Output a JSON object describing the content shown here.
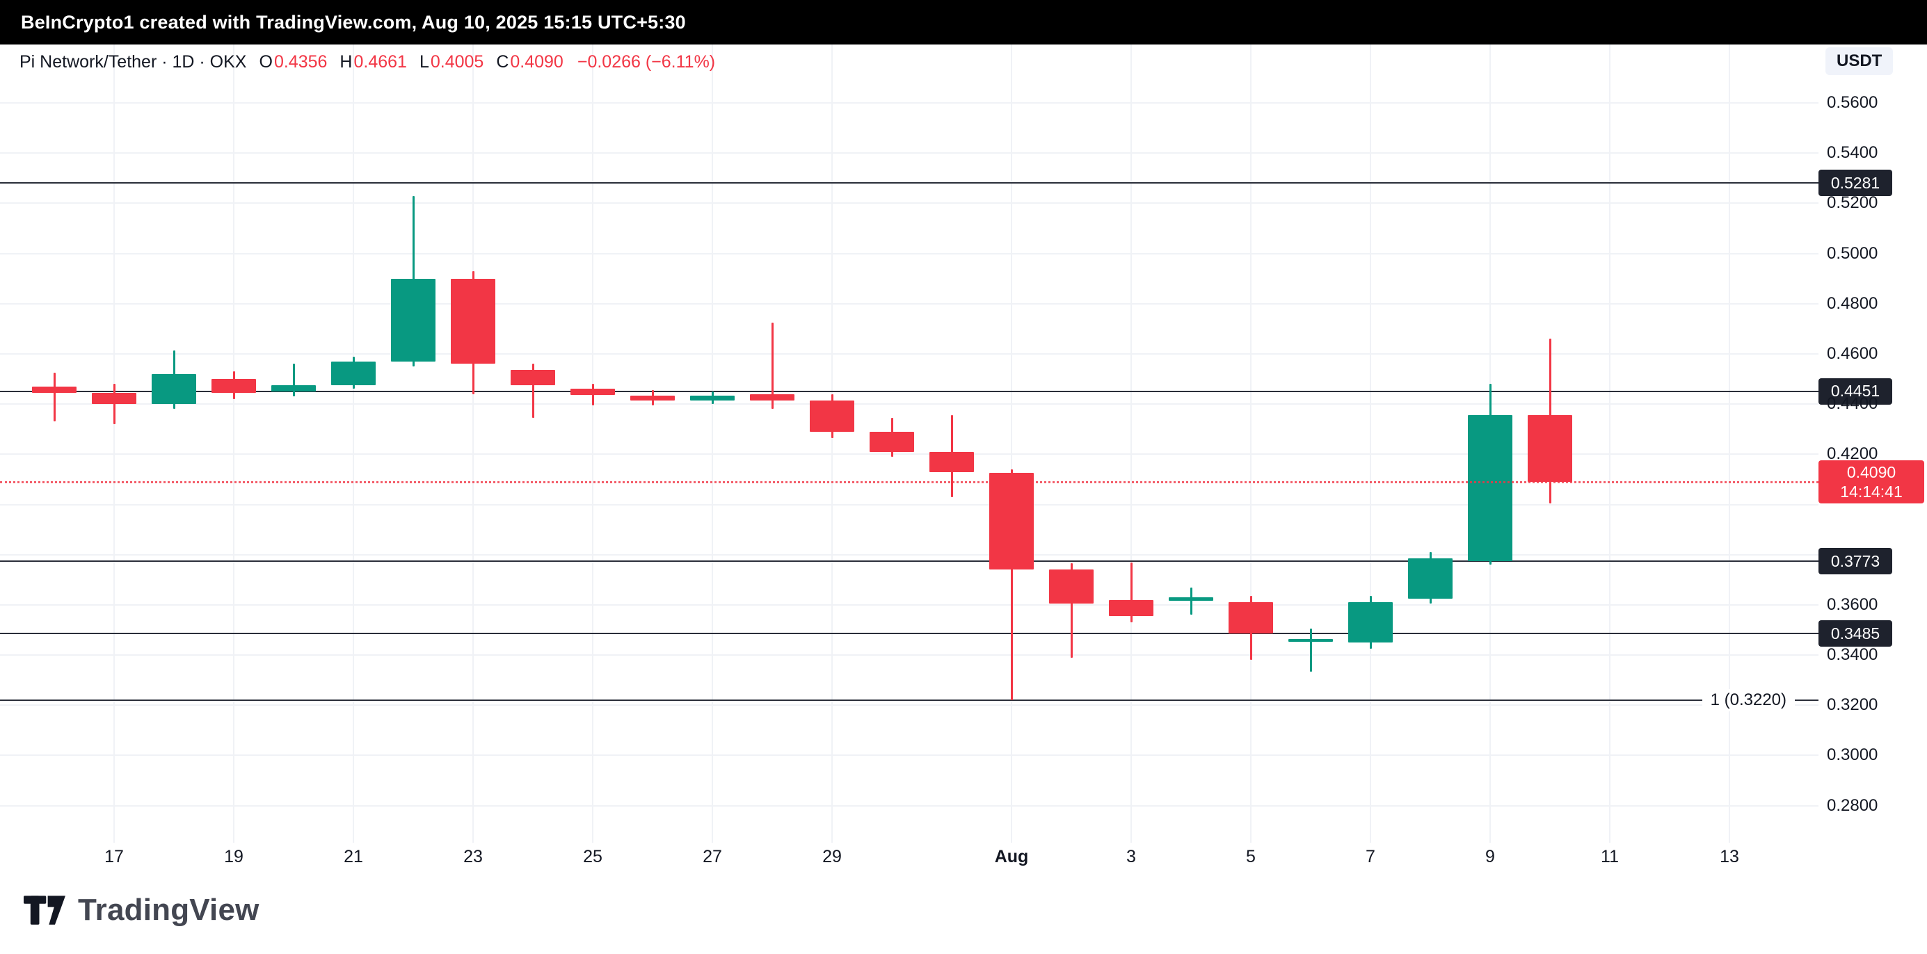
{
  "top_bar": {
    "text": "BeInCrypto1 created with TradingView.com, Aug 10, 2025 15:15 UTC+5:30"
  },
  "legend": {
    "title": "Pi Network/Tether · 1D · OKX",
    "ohlc": [
      {
        "label": "O",
        "value": "0.4356"
      },
      {
        "label": "H",
        "value": "0.4661"
      },
      {
        "label": "L",
        "value": "0.4005"
      },
      {
        "label": "C",
        "value": "0.4090"
      }
    ],
    "change": "−0.0266 (−6.11%)"
  },
  "axis": {
    "currency": "USDT",
    "price_ticks": [
      {
        "label": "0.5600",
        "value": 0.56
      },
      {
        "label": "0.5400",
        "value": 0.54
      },
      {
        "label": "0.5200",
        "value": 0.52
      },
      {
        "label": "0.5000",
        "value": 0.5
      },
      {
        "label": "0.4800",
        "value": 0.48
      },
      {
        "label": "0.4600",
        "value": 0.46
      },
      {
        "label": "0.4400",
        "value": 0.44
      },
      {
        "label": "0.4200",
        "value": 0.42
      },
      {
        "label": "0.3600",
        "value": 0.36
      },
      {
        "label": "0.3400",
        "value": 0.34
      },
      {
        "label": "0.3200",
        "value": 0.32
      },
      {
        "label": "0.3000",
        "value": 0.3
      },
      {
        "label": "0.2800",
        "value": 0.28
      }
    ],
    "time_ticks": [
      {
        "label": "17",
        "day_index": 1
      },
      {
        "label": "19",
        "day_index": 3
      },
      {
        "label": "21",
        "day_index": 5
      },
      {
        "label": "23",
        "day_index": 7
      },
      {
        "label": "25",
        "day_index": 9
      },
      {
        "label": "27",
        "day_index": 11
      },
      {
        "label": "29",
        "day_index": 13
      },
      {
        "label": "Aug",
        "day_index": 16,
        "bold": true
      },
      {
        "label": "3",
        "day_index": 18
      },
      {
        "label": "5",
        "day_index": 20
      },
      {
        "label": "7",
        "day_index": 22
      },
      {
        "label": "9",
        "day_index": 24
      },
      {
        "label": "11",
        "day_index": 26
      },
      {
        "label": "13",
        "day_index": 28
      }
    ]
  },
  "colors": {
    "up": "#089981",
    "down": "#f23645",
    "level_line": "#2a2e39",
    "badge_bg": "#1e222d",
    "last_price": "#f23645",
    "text": "#131722"
  },
  "chart_data": {
    "type": "candlestick",
    "title": "Pi Network/Tether · 1D · OKX",
    "symbol": "Pi Network/Tether",
    "exchange": "OKX",
    "interval": "1D",
    "quote_currency": "USDT",
    "ylim": [
      0.27,
      0.57
    ],
    "grid_step": 0.02,
    "last": {
      "price": 0.409,
      "label": "0.4090",
      "countdown": "14:14:41"
    },
    "levels": [
      {
        "price": 0.5281,
        "label": "0.5281",
        "badge": true
      },
      {
        "price": 0.4451,
        "label": "0.4451",
        "badge": true
      },
      {
        "price": 0.3773,
        "label": "0.3773",
        "badge": true
      },
      {
        "price": 0.3485,
        "label": "0.3485",
        "badge": true
      },
      {
        "price": 0.322,
        "label": "1 (0.3220)",
        "badge": false,
        "right_label": "1 (0.3220)"
      }
    ],
    "candles": [
      {
        "date": "Jul 16",
        "o": 0.447,
        "h": 0.4525,
        "l": 0.433,
        "c": 0.4445
      },
      {
        "date": "Jul 17",
        "o": 0.4445,
        "h": 0.448,
        "l": 0.432,
        "c": 0.44
      },
      {
        "date": "Jul 18",
        "o": 0.44,
        "h": 0.4615,
        "l": 0.438,
        "c": 0.452
      },
      {
        "date": "Jul 19",
        "o": 0.45,
        "h": 0.453,
        "l": 0.442,
        "c": 0.4445
      },
      {
        "date": "Jul 20",
        "o": 0.445,
        "h": 0.456,
        "l": 0.443,
        "c": 0.4475
      },
      {
        "date": "Jul 21",
        "o": 0.4475,
        "h": 0.459,
        "l": 0.446,
        "c": 0.457
      },
      {
        "date": "Jul 22",
        "o": 0.457,
        "h": 0.523,
        "l": 0.455,
        "c": 0.49
      },
      {
        "date": "Jul 23",
        "o": 0.49,
        "h": 0.493,
        "l": 0.444,
        "c": 0.456
      },
      {
        "date": "Jul 24",
        "o": 0.4535,
        "h": 0.456,
        "l": 0.4345,
        "c": 0.4475
      },
      {
        "date": "Jul 25",
        "o": 0.446,
        "h": 0.448,
        "l": 0.4395,
        "c": 0.4435
      },
      {
        "date": "Jul 26",
        "o": 0.4435,
        "h": 0.4455,
        "l": 0.4395,
        "c": 0.4415
      },
      {
        "date": "Jul 27",
        "o": 0.4415,
        "h": 0.445,
        "l": 0.44,
        "c": 0.4435
      },
      {
        "date": "Jul 28",
        "o": 0.444,
        "h": 0.4725,
        "l": 0.438,
        "c": 0.4415
      },
      {
        "date": "Jul 29",
        "o": 0.4415,
        "h": 0.444,
        "l": 0.4265,
        "c": 0.429
      },
      {
        "date": "Jul 30",
        "o": 0.429,
        "h": 0.4345,
        "l": 0.419,
        "c": 0.421
      },
      {
        "date": "Jul 31",
        "o": 0.421,
        "h": 0.4355,
        "l": 0.403,
        "c": 0.413
      },
      {
        "date": "Aug 1",
        "o": 0.4125,
        "h": 0.414,
        "l": 0.322,
        "c": 0.374
      },
      {
        "date": "Aug 2",
        "o": 0.374,
        "h": 0.3765,
        "l": 0.339,
        "c": 0.3605
      },
      {
        "date": "Aug 3",
        "o": 0.362,
        "h": 0.377,
        "l": 0.353,
        "c": 0.3555
      },
      {
        "date": "Aug 4",
        "o": 0.3615,
        "h": 0.367,
        "l": 0.356,
        "c": 0.363
      },
      {
        "date": "Aug 5",
        "o": 0.361,
        "h": 0.3635,
        "l": 0.338,
        "c": 0.3485
      },
      {
        "date": "Aug 6",
        "o": 0.3455,
        "h": 0.3505,
        "l": 0.3335,
        "c": 0.3465
      },
      {
        "date": "Aug 7",
        "o": 0.345,
        "h": 0.3635,
        "l": 0.3425,
        "c": 0.361
      },
      {
        "date": "Aug 8",
        "o": 0.3625,
        "h": 0.381,
        "l": 0.3605,
        "c": 0.3785
      },
      {
        "date": "Aug 9",
        "o": 0.3775,
        "h": 0.448,
        "l": 0.376,
        "c": 0.4355
      },
      {
        "date": "Aug 10",
        "o": 0.4356,
        "h": 0.4661,
        "l": 0.4005,
        "c": 0.409
      }
    ]
  },
  "footer": {
    "brand": "TradingView"
  }
}
